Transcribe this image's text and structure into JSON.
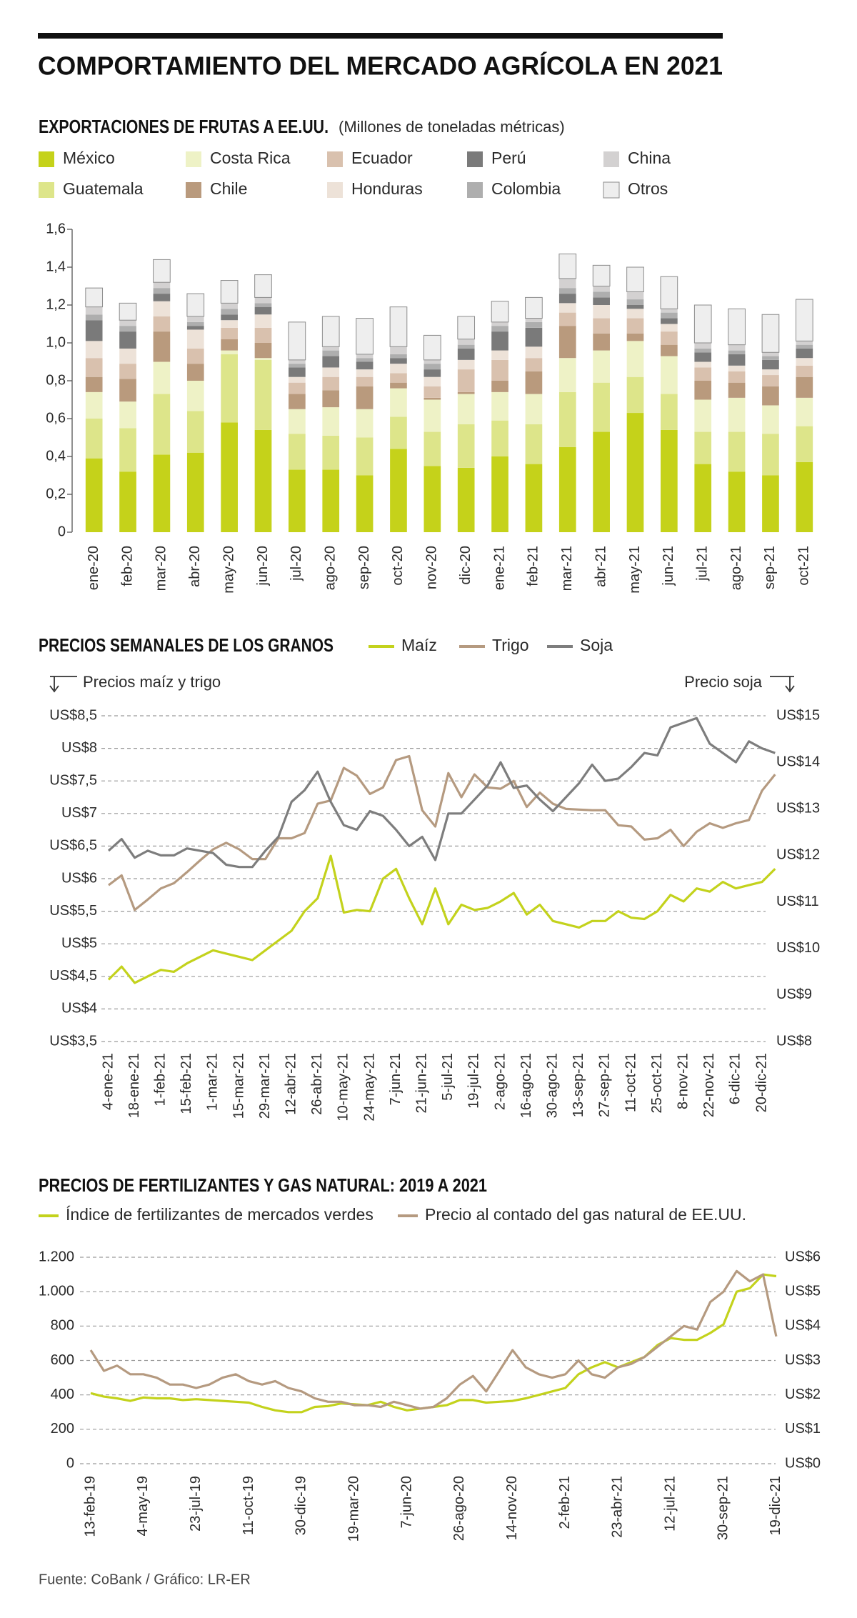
{
  "title": "COMPORTAMIENTO DEL MERCADO AGRÍCOLA EN 2021",
  "source": "Fuente: CoBank / Gráfico: LR-ER",
  "chart_data": [
    {
      "type": "bar",
      "stacked": true,
      "grid": false,
      "title": "EXPORTACIONES DE FRUTAS A EE.UU.",
      "subtitle": "(Millones de toneladas métricas)",
      "categories": [
        "ene-20",
        "feb-20",
        "mar-20",
        "abr-20",
        "may-20",
        "jun-20",
        "jul-20",
        "ago-20",
        "sep-20",
        "oct-20",
        "nov-20",
        "dic-20",
        "ene-21",
        "feb-21",
        "mar-21",
        "abr-21",
        "may-21",
        "jun-21",
        "jul-21",
        "ago-21",
        "sep-21",
        "oct-21"
      ],
      "ylim": [
        0,
        1.6
      ],
      "yticks": [
        0,
        {
          "value": 0.2,
          "label": "0,2"
        },
        {
          "value": 0.4,
          "label": "0,4"
        },
        {
          "value": 0.6,
          "label": "0,6"
        },
        {
          "value": 0.8,
          "label": "0,8"
        },
        {
          "value": 1.0,
          "label": "1,0"
        },
        {
          "value": 1.2,
          "label": "1,2"
        },
        {
          "value": 1.4,
          "label": "1,4"
        },
        {
          "value": 1.6,
          "label": "1,6"
        }
      ],
      "series": [
        {
          "name": "México",
          "color": "#c5d21a",
          "values": [
            0.39,
            0.32,
            0.41,
            0.42,
            0.58,
            0.54,
            0.33,
            0.33,
            0.3,
            0.44,
            0.35,
            0.34,
            0.4,
            0.36,
            0.45,
            0.53,
            0.63,
            0.54,
            0.36,
            0.32,
            0.3,
            0.37
          ]
        },
        {
          "name": "Guatemala",
          "color": "#dde58a",
          "values": [
            0.21,
            0.23,
            0.32,
            0.22,
            0.36,
            0.37,
            0.19,
            0.18,
            0.2,
            0.17,
            0.18,
            0.23,
            0.19,
            0.21,
            0.29,
            0.26,
            0.19,
            0.19,
            0.17,
            0.21,
            0.22,
            0.19
          ]
        },
        {
          "name": "Costa Rica",
          "color": "#eef2c6",
          "values": [
            0.14,
            0.14,
            0.17,
            0.16,
            0.02,
            0.01,
            0.13,
            0.15,
            0.15,
            0.15,
            0.17,
            0.16,
            0.15,
            0.16,
            0.18,
            0.17,
            0.19,
            0.2,
            0.17,
            0.18,
            0.15,
            0.15
          ]
        },
        {
          "name": "Chile",
          "color": "#b99a7d",
          "values": [
            0.08,
            0.12,
            0.16,
            0.09,
            0.06,
            0.08,
            0.08,
            0.09,
            0.12,
            0.03,
            0.01,
            0.01,
            0.06,
            0.12,
            0.17,
            0.09,
            0.04,
            0.06,
            0.1,
            0.08,
            0.1,
            0.11
          ]
        },
        {
          "name": "Ecuador",
          "color": "#d9c1ae",
          "values": [
            0.1,
            0.08,
            0.08,
            0.08,
            0.06,
            0.08,
            0.06,
            0.07,
            0.05,
            0.05,
            0.06,
            0.12,
            0.11,
            0.07,
            0.07,
            0.08,
            0.08,
            0.07,
            0.07,
            0.06,
            0.06,
            0.06
          ]
        },
        {
          "name": "Honduras",
          "color": "#ede2d8",
          "values": [
            0.09,
            0.08,
            0.08,
            0.1,
            0.04,
            0.07,
            0.03,
            0.05,
            0.04,
            0.05,
            0.05,
            0.05,
            0.05,
            0.06,
            0.05,
            0.07,
            0.05,
            0.04,
            0.03,
            0.03,
            0.03,
            0.04
          ]
        },
        {
          "name": "Perú",
          "color": "#7a7a7a",
          "values": [
            0.11,
            0.09,
            0.04,
            0.02,
            0.03,
            0.04,
            0.05,
            0.06,
            0.04,
            0.03,
            0.04,
            0.06,
            0.1,
            0.1,
            0.05,
            0.04,
            0.02,
            0.03,
            0.05,
            0.06,
            0.05,
            0.05
          ]
        },
        {
          "name": "Colombia",
          "color": "#aeaeae",
          "values": [
            0.03,
            0.03,
            0.03,
            0.02,
            0.03,
            0.02,
            0.02,
            0.03,
            0.02,
            0.02,
            0.03,
            0.02,
            0.03,
            0.03,
            0.03,
            0.03,
            0.03,
            0.03,
            0.02,
            0.02,
            0.02,
            0.02
          ]
        },
        {
          "name": "China",
          "color": "#d3d1d1",
          "values": [
            0.04,
            0.03,
            0.03,
            0.03,
            0.03,
            0.03,
            0.02,
            0.02,
            0.02,
            0.04,
            0.02,
            0.03,
            0.02,
            0.02,
            0.05,
            0.03,
            0.04,
            0.02,
            0.03,
            0.03,
            0.02,
            0.02
          ]
        },
        {
          "name": "Otros",
          "color": "#eeeeee",
          "edgecolor": "#8c8c8c",
          "values": [
            0.1,
            0.09,
            0.12,
            0.12,
            0.12,
            0.12,
            0.2,
            0.16,
            0.19,
            0.21,
            0.13,
            0.12,
            0.11,
            0.11,
            0.13,
            0.11,
            0.13,
            0.17,
            0.2,
            0.19,
            0.2,
            0.22
          ]
        }
      ]
    },
    {
      "type": "line",
      "grid": true,
      "title": "PRECIOS SEMANALES DE LOS GRANOS",
      "ylabel": "Precios maíz y trigo",
      "y2label": "Precio soja",
      "categories": [
        "4-ene-21",
        null,
        "18-ene-21",
        null,
        "1-feb-21",
        null,
        "15-feb-21",
        null,
        "1-mar-21",
        null,
        "15-mar-21",
        null,
        "29-mar-21",
        null,
        "12-abr-21",
        null,
        "26-abr-21",
        null,
        "10-may-21",
        null,
        "24-may-21",
        null,
        "7-jun-21",
        null,
        "21-jun-21",
        null,
        "5-jul-21",
        null,
        "19-jul-21",
        null,
        "2-ago-21",
        null,
        "16-ago-21",
        null,
        "30-ago-21",
        null,
        "13-sep-21",
        null,
        "27-sep-21",
        null,
        "11-oct-21",
        null,
        "25-oct-21",
        null,
        "8-nov-21",
        null,
        "22-nov-21",
        null,
        "6-dic-21",
        null,
        "20-dic-21",
        null
      ],
      "ylim": [
        3.5,
        8.5
      ],
      "yticks": [
        {
          "value": 3.5,
          "label": "US$3,5"
        },
        {
          "value": 4,
          "label": "US$4"
        },
        {
          "value": 4.5,
          "label": "US$4,5"
        },
        {
          "value": 5,
          "label": "US$5"
        },
        {
          "value": 5.5,
          "label": "US$5,5"
        },
        {
          "value": 6,
          "label": "US$6"
        },
        {
          "value": 6.5,
          "label": "US$6,5"
        },
        {
          "value": 7,
          "label": "US$7"
        },
        {
          "value": 7.5,
          "label": "US$7,5"
        },
        {
          "value": 8,
          "label": "US$8"
        },
        {
          "value": 8.5,
          "label": "US$8,5"
        }
      ],
      "y2lim": [
        8,
        15
      ],
      "y2ticks": [
        {
          "value": 8,
          "label": "US$8"
        },
        {
          "value": 9,
          "label": "US$9"
        },
        {
          "value": 10,
          "label": "US$10"
        },
        {
          "value": 11,
          "label": "US$11"
        },
        {
          "value": 12,
          "label": "US$12"
        },
        {
          "value": 13,
          "label": "US$13"
        },
        {
          "value": 14,
          "label": "US$14"
        },
        {
          "value": 15,
          "label": "US$15"
        }
      ],
      "series": [
        {
          "name": "Maíz",
          "color": "#c3d21c",
          "values": [
            4.45,
            4.65,
            4.4,
            4.5,
            4.6,
            4.57,
            4.7,
            4.8,
            4.9,
            4.85,
            4.8,
            4.75,
            4.9,
            5.05,
            5.2,
            5.5,
            5.7,
            6.35,
            5.48,
            5.52,
            5.5,
            6.0,
            6.15,
            5.7,
            5.3,
            5.85,
            5.3,
            5.6,
            5.52,
            5.55,
            5.65,
            5.78,
            5.45,
            5.6,
            5.35,
            5.3,
            5.25,
            5.35,
            5.35,
            5.5,
            5.4,
            5.38,
            5.5,
            5.75,
            5.65,
            5.85,
            5.8,
            5.95,
            5.85,
            5.9,
            5.95,
            6.15
          ]
        },
        {
          "name": "Trigo",
          "color": "#b59a80",
          "values": [
            5.9,
            6.05,
            5.52,
            5.68,
            5.85,
            5.93,
            6.1,
            6.28,
            6.45,
            6.55,
            6.45,
            6.3,
            6.3,
            6.62,
            6.62,
            6.7,
            7.15,
            7.2,
            7.7,
            7.58,
            7.3,
            7.4,
            7.82,
            7.88,
            7.05,
            6.8,
            7.62,
            7.25,
            7.6,
            7.4,
            7.38,
            7.5,
            7.1,
            7.32,
            7.15,
            7.07,
            7.06,
            7.05,
            7.05,
            6.82,
            6.8,
            6.6,
            6.62,
            6.75,
            6.5,
            6.72,
            6.85,
            6.78,
            6.85,
            6.9,
            7.35,
            7.6
          ]
        },
        {
          "name": "Soja",
          "color": "#7d7d7d",
          "axis": "y2",
          "values": [
            12.1,
            12.35,
            11.95,
            12.1,
            12.0,
            12.0,
            12.15,
            12.1,
            12.05,
            11.8,
            11.75,
            11.75,
            12.1,
            12.4,
            13.15,
            13.4,
            13.8,
            13.15,
            12.65,
            12.55,
            12.95,
            12.85,
            12.55,
            12.2,
            12.4,
            11.9,
            12.9,
            12.9,
            13.2,
            13.5,
            14.0,
            13.45,
            13.5,
            13.2,
            12.95,
            13.25,
            13.55,
            13.95,
            13.6,
            13.65,
            13.9,
            14.2,
            14.15,
            14.75,
            14.85,
            14.95,
            14.4,
            14.2,
            14.0,
            14.45,
            14.3,
            14.2
          ]
        }
      ]
    },
    {
      "type": "line",
      "grid": true,
      "title": "PRECIOS DE FERTILIZANTES Y GAS NATURAL: 2019 A 2021",
      "categories": [
        "13-feb-19",
        null,
        null,
        null,
        "4-may-19",
        null,
        null,
        null,
        "23-jul-19",
        null,
        null,
        null,
        "11-oct-19",
        null,
        null,
        null,
        "30-dic-19",
        null,
        null,
        null,
        "19-mar-20",
        null,
        null,
        null,
        "7-jun-20",
        null,
        null,
        null,
        "26-ago-20",
        null,
        null,
        null,
        "14-nov-20",
        null,
        null,
        null,
        "2-feb-21",
        null,
        null,
        null,
        "23-abr-21",
        null,
        null,
        null,
        "12-jul-21",
        null,
        null,
        null,
        "30-sep-21",
        null,
        null,
        null,
        "19-dic-21"
      ],
      "ylim": [
        0,
        1200
      ],
      "yticks": [
        0,
        200,
        400,
        600,
        800,
        {
          "value": 1000,
          "label": "1.000"
        },
        {
          "value": 1200,
          "label": "1.200"
        }
      ],
      "y2lim": [
        0,
        6
      ],
      "y2ticks": [
        {
          "value": 0,
          "label": "US$0"
        },
        {
          "value": 1,
          "label": "US$1"
        },
        {
          "value": 2,
          "label": "US$2"
        },
        {
          "value": 3,
          "label": "US$3"
        },
        {
          "value": 4,
          "label": "US$4"
        },
        {
          "value": 5,
          "label": "US$5"
        },
        {
          "value": 6,
          "label": "US$6"
        }
      ],
      "series": [
        {
          "name": "Índice de fertilizantes de mercados verdes",
          "color": "#c3d21c",
          "values": [
            410,
            390,
            380,
            365,
            385,
            380,
            380,
            370,
            375,
            370,
            365,
            360,
            355,
            330,
            310,
            300,
            300,
            330,
            335,
            350,
            345,
            340,
            360,
            330,
            310,
            320,
            330,
            340,
            370,
            370,
            355,
            360,
            365,
            380,
            400,
            420,
            440,
            520,
            560,
            590,
            560,
            590,
            620,
            690,
            730,
            720,
            720,
            760,
            810,
            1000,
            1020,
            1100,
            1090
          ]
        },
        {
          "name": "Precio al contado del gas natural de EE.UU.",
          "color": "#b59a80",
          "axis": "y2",
          "values": [
            3.3,
            2.7,
            2.85,
            2.6,
            2.6,
            2.5,
            2.3,
            2.3,
            2.2,
            2.3,
            2.5,
            2.6,
            2.4,
            2.3,
            2.4,
            2.2,
            2.1,
            1.9,
            1.8,
            1.8,
            1.7,
            1.7,
            1.65,
            1.8,
            1.7,
            1.6,
            1.65,
            1.9,
            2.3,
            2.55,
            2.1,
            2.7,
            3.3,
            2.8,
            2.6,
            2.5,
            2.6,
            3.0,
            2.6,
            2.5,
            2.8,
            2.9,
            3.1,
            3.4,
            3.7,
            4.0,
            3.9,
            4.7,
            5.0,
            5.6,
            5.3,
            5.5,
            3.7
          ]
        }
      ]
    }
  ]
}
